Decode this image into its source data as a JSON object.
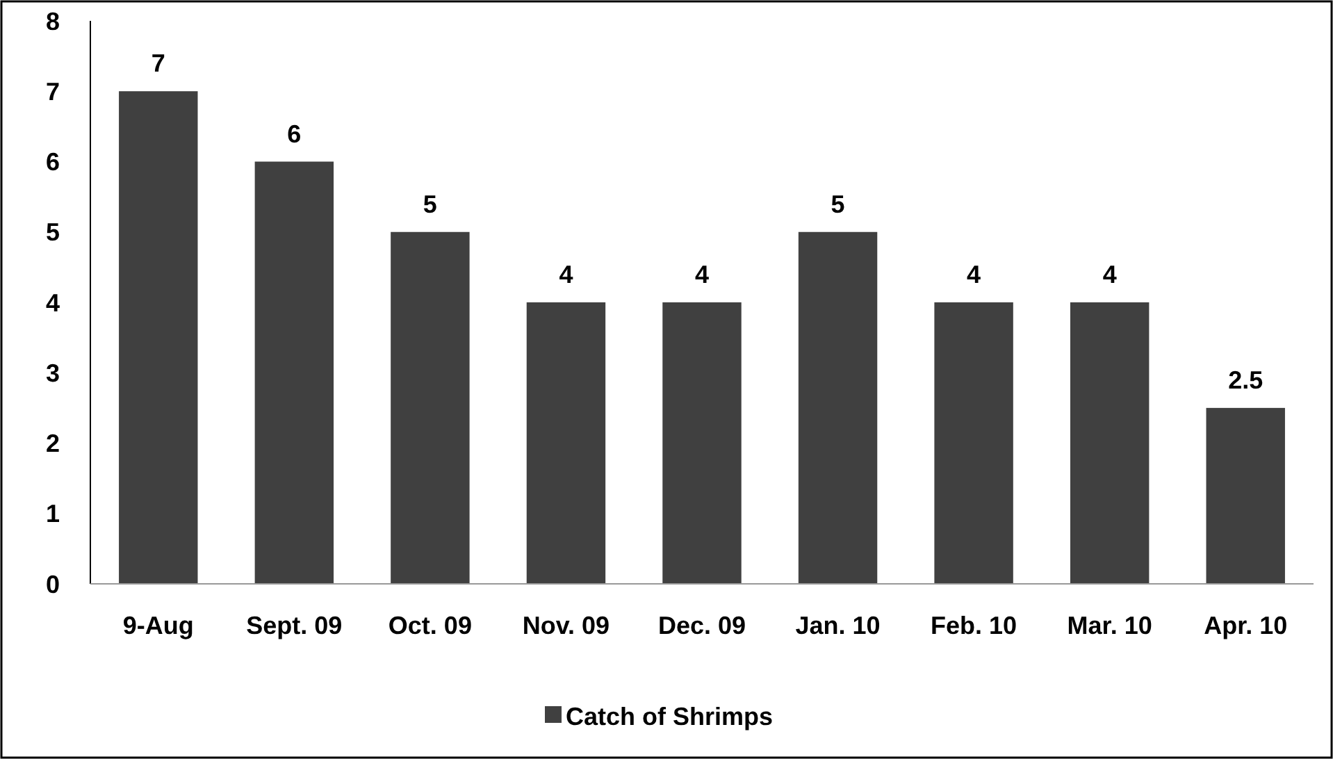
{
  "chart_data": {
    "type": "bar",
    "categories": [
      "9-Aug",
      "Sept. 09",
      "Oct. 09",
      "Nov. 09",
      "Dec. 09",
      "Jan. 10",
      "Feb. 10",
      "Mar. 10",
      "Apr. 10"
    ],
    "series": [
      {
        "name": "Catch of Shrimps",
        "color": "#404040",
        "values": [
          7,
          6,
          5,
          4,
          4,
          5,
          4,
          4,
          2.5
        ]
      }
    ],
    "ylim": [
      0,
      8
    ],
    "yticks": [
      0,
      1,
      2,
      3,
      4,
      5,
      6,
      7,
      8
    ],
    "data_labels": true,
    "legend": "bottom"
  }
}
